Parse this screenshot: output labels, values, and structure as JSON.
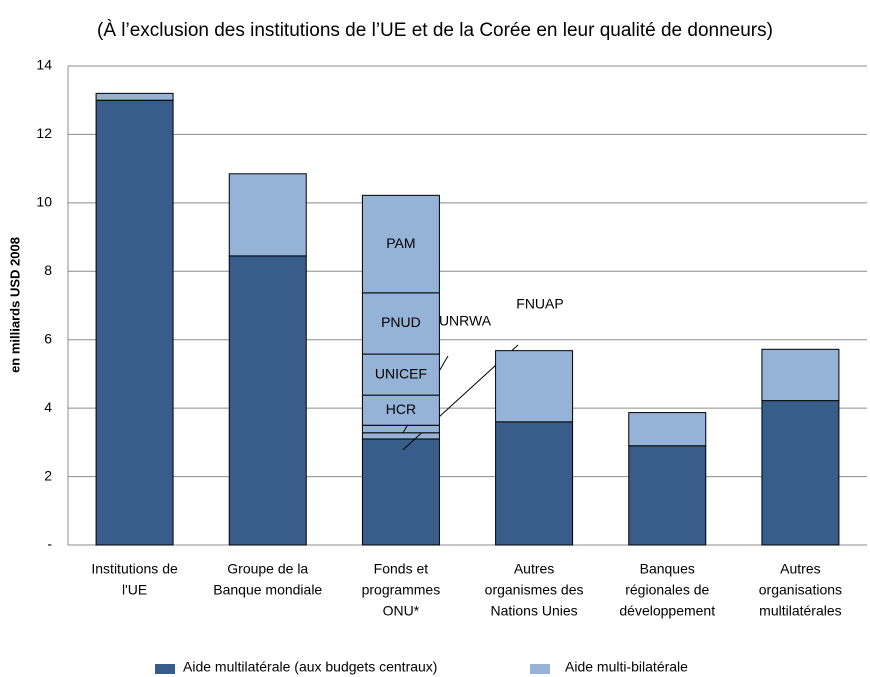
{
  "chart_data": {
    "type": "stacked_bar",
    "title": "(À l’exclusion des institutions de l’UE et de la Corée en leur qualité de donneurs)",
    "y_label": "en milliards  USD 2008",
    "categories": [
      [
        "Institutions de",
        "l'UE"
      ],
      [
        "Groupe de la",
        "Banque mondiale"
      ],
      [
        "Fonds et",
        "programmes",
        "ONU*"
      ],
      [
        "Autres",
        "organismes des",
        "Nations Unies"
      ],
      [
        "Banques",
        "régionales de",
        "développement"
      ],
      [
        "Autres",
        "organisations",
        "multilatérales"
      ]
    ],
    "series": [
      {
        "name": "Aide multilatérale (aux budgets centraux)",
        "color": "#385d8a",
        "values": [
          13.0,
          8.45,
          3.1,
          3.6,
          2.9,
          4.22
        ]
      },
      {
        "name": "Aide multi-bilatérale",
        "color": "#95b3d7",
        "values": [
          0.2,
          2.4,
          null,
          2.08,
          0.97,
          1.5
        ]
      }
    ],
    "breakdown_category": 2,
    "breakdown_series": 1,
    "breakdown": [
      {
        "name": "FNUAP",
        "value": 0.18,
        "callout": true
      },
      {
        "name": "UNRWA",
        "value": 0.22,
        "callout": true
      },
      {
        "name": "HCR",
        "value": 0.88
      },
      {
        "name": "UNICEF",
        "value": 1.2
      },
      {
        "name": "PNUD",
        "value": 1.79
      },
      {
        "name": "PAM",
        "value": 2.85
      }
    ],
    "ylim": [
      0,
      14
    ],
    "yticks": [
      {
        "value": 0,
        "label": "-"
      },
      2,
      4,
      6,
      8,
      10,
      12,
      14
    ],
    "grid": true
  }
}
